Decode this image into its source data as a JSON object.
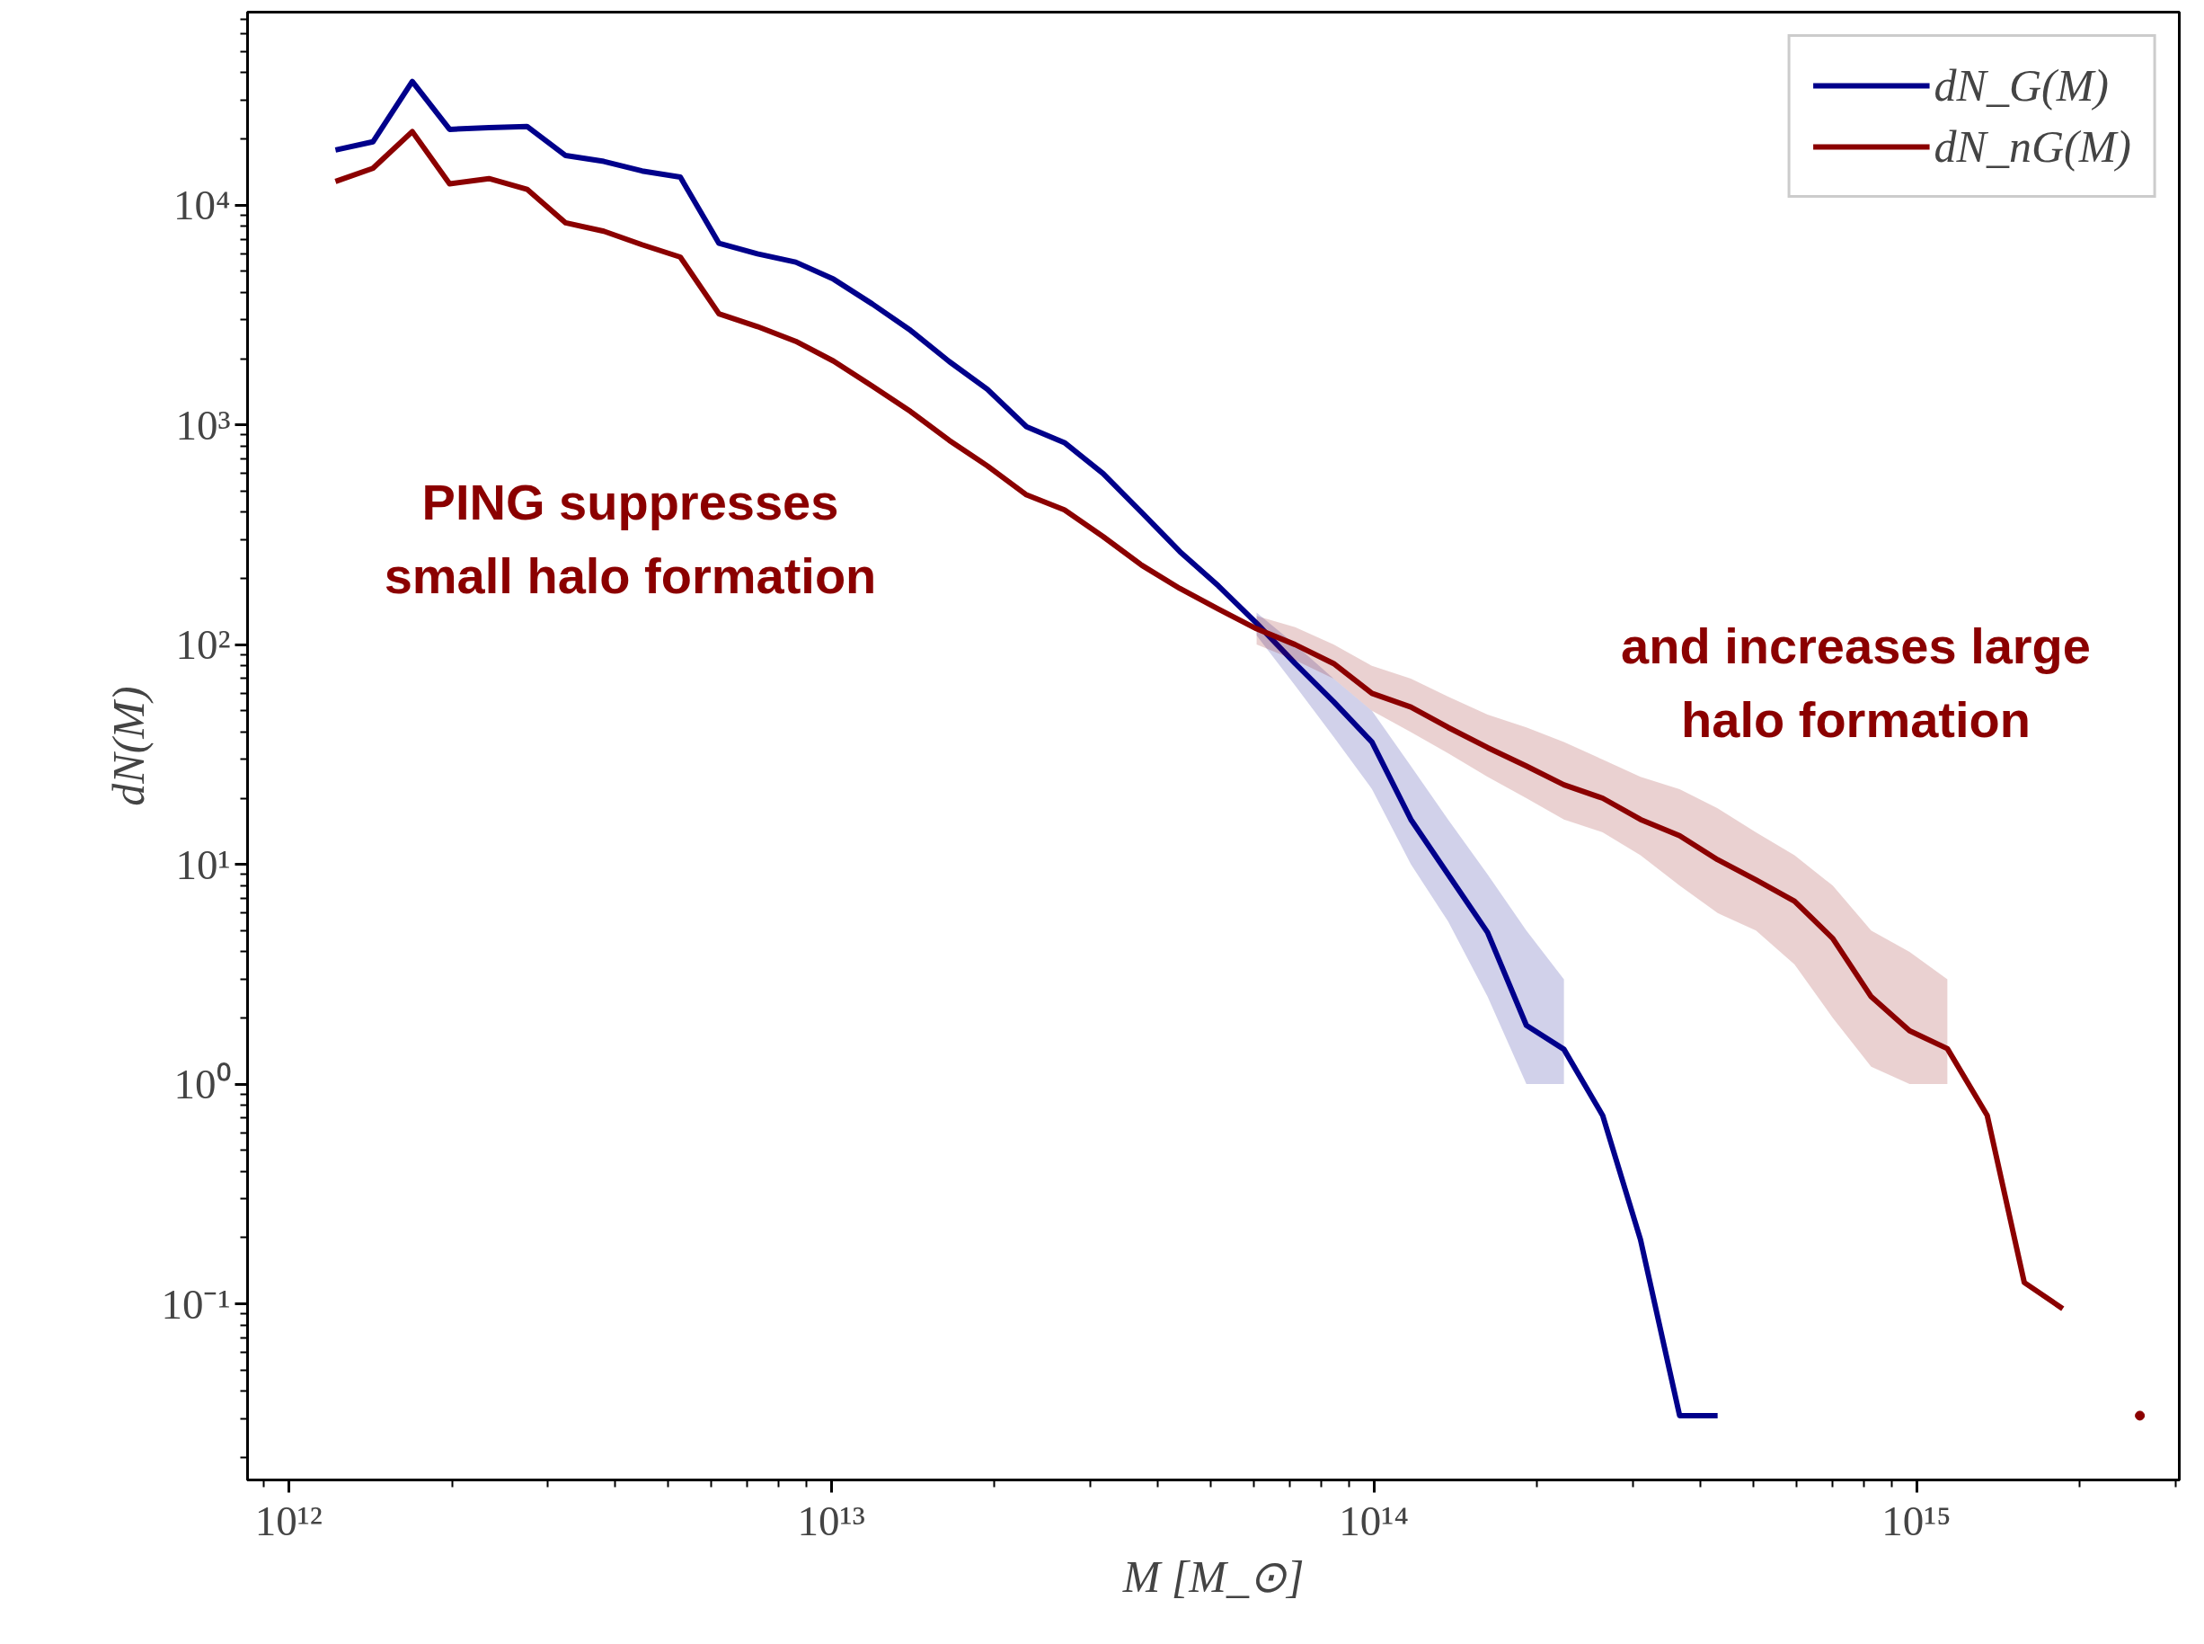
{
  "chart_data": {
    "type": "line",
    "xlabel": "M [M_⊙]",
    "ylabel": "dN(M)",
    "x": [
      1220000000000.0,
      1430000000000.0,
      1690000000000.0,
      1980000000000.0,
      2340000000000.0,
      2750000000000.0,
      3240000000000.0,
      3810000000000.0,
      4480000000000.0,
      5270000000000.0,
      6210000000000.0,
      7310000000000.0,
      8600000000000.0,
      10100000000000.0,
      11900000000000.0,
      14000000000000.0,
      16500000000000.0,
      19400000000000.0,
      22900000000000.0,
      26900000000000.0,
      31700000000000.0,
      37300000000000.0,
      43900000000000.0,
      51700000000000.0,
      60800000000000.0,
      71600000000000.0,
      84300000000000.0,
      99200000000000.0,
      117000000000000.0,
      137000000000000.0,
      162000000000000.0,
      191000000000000.0,
      224000000000000.0,
      264000000000000.0,
      310000000000000.0,
      366000000000000.0,
      430000000000000.0,
      506000000000000.0,
      596000000000000.0,
      701000000000000.0,
      825000000000000.0,
      971000000000000.0,
      1140000000000000.0,
      1350000000000000.0,
      1580000000000000.0,
      1860000000000000.0,
      2190000000000000.0,
      2580000000000000.0
    ],
    "series": [
      {
        "name": "dN_G(M)",
        "color": "#00008b",
        "values": [
          17800,
          19400,
          36500,
          22100,
          22500,
          22800,
          16800,
          15800,
          14300,
          13400,
          6700,
          6000,
          5500,
          4600,
          3550,
          2690,
          1940,
          1450,
          980,
          830,
          600,
          400,
          265,
          185,
          125,
          82,
          55,
          36,
          16,
          9,
          4.9,
          1.85,
          1.44,
          0.72,
          0.196,
          0.031,
          0.031,
          null,
          null,
          null,
          null,
          null,
          null,
          null,
          null,
          null,
          null,
          null
        ],
        "lower": [
          null,
          null,
          null,
          null,
          null,
          null,
          null,
          null,
          null,
          null,
          null,
          null,
          null,
          null,
          null,
          null,
          null,
          null,
          null,
          null,
          null,
          null,
          null,
          null,
          110,
          65,
          38,
          22,
          10,
          5.5,
          2.5,
          1,
          1,
          null,
          null,
          null,
          null,
          null,
          null,
          null,
          null,
          null,
          null,
          null,
          null,
          null,
          null,
          null
        ],
        "upper": [
          null,
          null,
          null,
          null,
          null,
          null,
          null,
          null,
          null,
          null,
          null,
          null,
          null,
          null,
          null,
          null,
          null,
          null,
          null,
          null,
          null,
          null,
          null,
          null,
          140,
          100,
          70,
          50,
          28,
          16,
          9,
          5,
          3,
          null,
          null,
          null,
          null,
          null,
          null,
          null,
          null,
          null,
          null,
          null,
          null,
          null,
          null,
          null
        ]
      },
      {
        "name": "dN_nG(M)",
        "color": "#8b0000",
        "values": [
          12800,
          14700,
          21600,
          12500,
          13200,
          11800,
          8300,
          7600,
          6600,
          5800,
          3200,
          2800,
          2400,
          1950,
          1500,
          1150,
          850,
          650,
          480,
          410,
          310,
          230,
          180,
          145,
          118,
          100,
          82,
          60,
          52,
          42,
          34,
          28,
          23,
          20,
          16,
          13.5,
          10.5,
          8.5,
          6.8,
          4.6,
          2.5,
          1.75,
          1.45,
          0.72,
          0.125,
          0.095,
          null,
          0.031
        ],
        "lower": [
          null,
          null,
          null,
          null,
          null,
          null,
          null,
          null,
          null,
          null,
          null,
          null,
          null,
          null,
          null,
          null,
          null,
          null,
          null,
          null,
          null,
          null,
          null,
          null,
          100,
          85,
          70,
          50,
          40,
          32,
          25,
          20,
          16,
          14,
          11,
          8,
          6,
          5,
          3.5,
          2,
          1.2,
          1,
          1,
          null,
          null,
          null,
          null,
          null
        ],
        "upper": [
          null,
          null,
          null,
          null,
          null,
          null,
          null,
          null,
          null,
          null,
          null,
          null,
          null,
          null,
          null,
          null,
          null,
          null,
          null,
          null,
          null,
          null,
          null,
          null,
          135,
          120,
          100,
          80,
          70,
          58,
          48,
          42,
          36,
          30,
          25,
          22,
          18,
          14,
          11,
          8,
          5,
          4,
          3,
          null,
          null,
          null,
          null,
          null
        ]
      }
    ],
    "log": "xy",
    "xlim": [
      840000000000.0,
      3050000000000000.0
    ],
    "ylim": [
      0.0158,
      75500
    ],
    "xticks": [
      {
        "value": 1000000000000.0,
        "label": "10¹²"
      },
      {
        "value": 10000000000000.0,
        "label": "10¹³"
      },
      {
        "value": 100000000000000.0,
        "label": "10¹⁴"
      },
      {
        "value": 1000000000000000.0,
        "label": "10¹⁵"
      }
    ],
    "yticks": [
      {
        "value": 0.1,
        "label": "10⁻¹"
      },
      {
        "value": 1,
        "label": "10⁰"
      },
      {
        "value": 10,
        "label": "10¹"
      },
      {
        "value": 100,
        "label": "10²"
      },
      {
        "value": 1000,
        "label": "10³"
      },
      {
        "value": 10000,
        "label": "10⁴"
      }
    ],
    "legend": "top right",
    "grid": false,
    "annotations": [
      "PING suppresses\nsmall halo formation",
      "and increases large\nhalo formation"
    ]
  }
}
